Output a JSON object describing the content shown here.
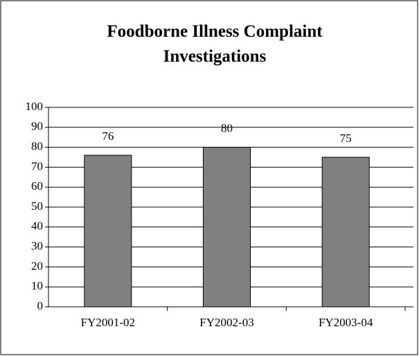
{
  "chart_data": {
    "type": "bar",
    "title": "Foodborne Illness Complaint Investigations",
    "categories": [
      "FY2001-02",
      "FY2002-03",
      "FY2003-04"
    ],
    "values": [
      76,
      80,
      75
    ],
    "color": "#808080",
    "ylim": [
      0,
      100
    ],
    "yticks": [
      0,
      10,
      20,
      30,
      40,
      50,
      60,
      70,
      80,
      90,
      100
    ],
    "grid": true
  }
}
